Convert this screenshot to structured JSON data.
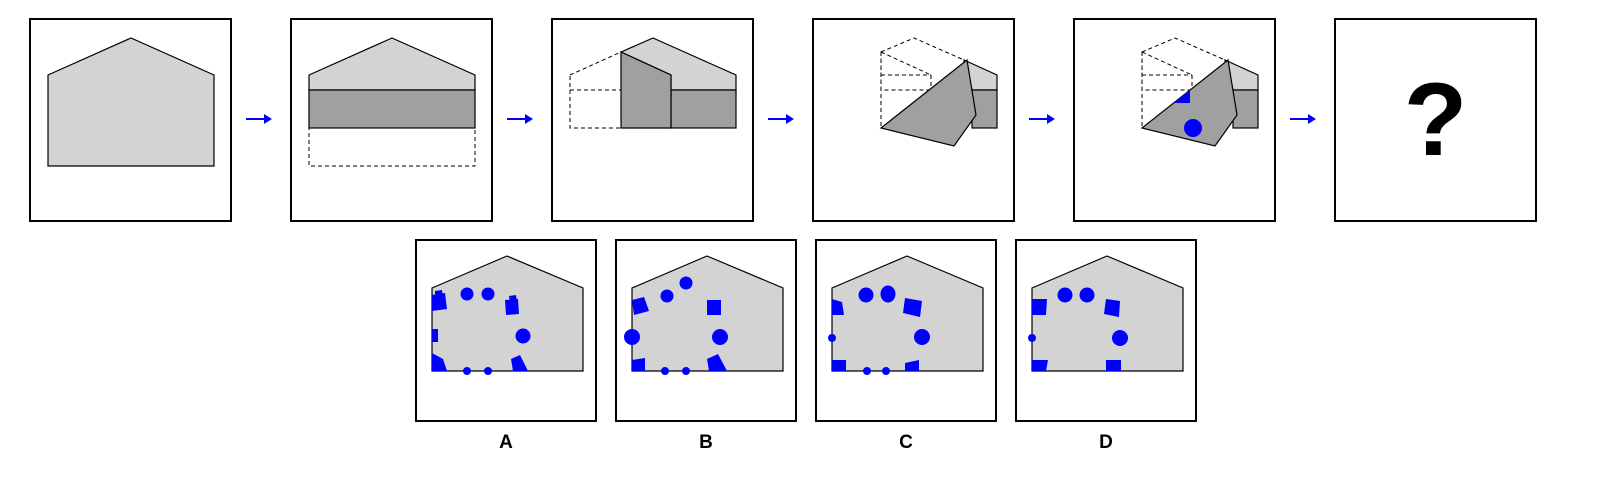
{
  "question_mark": "?",
  "options": [
    {
      "label": "A"
    },
    {
      "label": "B"
    },
    {
      "label": "C"
    },
    {
      "label": "D"
    }
  ],
  "colors": {
    "paper": "#d3d3d3",
    "paper_folded": "#a0a0a0",
    "hole": "#0000ff",
    "arrow": "#0000ff",
    "border": "#000000"
  },
  "icons": [
    "right-arrow-icon"
  ]
}
